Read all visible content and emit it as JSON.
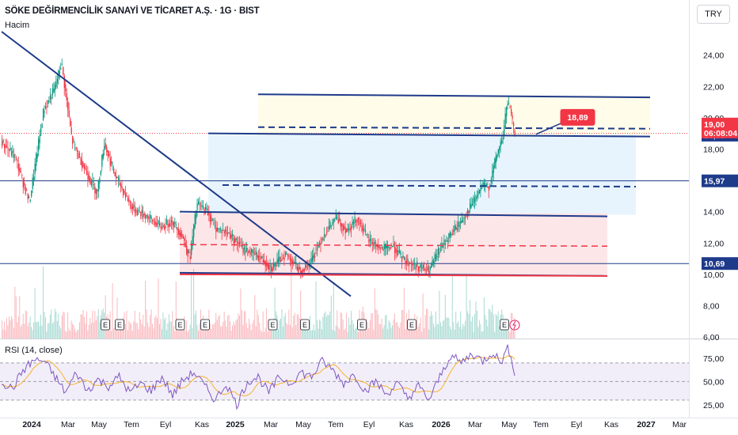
{
  "header": {
    "title": "SÖKE DEĞİRMENCİLİK SANAYİ VE TİCARET A.Ş. · 1G · BIST",
    "volume_label": "Hacim",
    "currency": "TRY",
    "rsi_label": "RSI (14, close)"
  },
  "colors": {
    "blue_line": "#1e3a8a",
    "red_line": "#f23645",
    "candle_up": "#089981",
    "candle_down": "#f23645",
    "rsi_line": "#7e57c2",
    "rsi_ma": "#f7b32b",
    "yellow_zone": "#fffbe6",
    "blue_zone": "#e3f2fd",
    "red_zone": "#fde2e4"
  },
  "chart_data": {
    "type": "candlestick",
    "symbol": "SÖKE DEĞİRMENCİLİK SANAYİ VE TİCARET A.Ş.",
    "interval": "1G",
    "exchange": "BIST",
    "y_axis": {
      "ticks": [
        "24,00",
        "22,00",
        "20,00",
        "18,00",
        "16,00",
        "14,00",
        "12,00",
        "10,00",
        "8,00",
        "6,00"
      ],
      "range": [
        5.8,
        25.5
      ]
    },
    "x_axis": {
      "ticks": [
        {
          "label": "2024",
          "bold": true
        },
        {
          "label": "Mar",
          "bold": false
        },
        {
          "label": "May",
          "bold": false
        },
        {
          "label": "Tem",
          "bold": false
        },
        {
          "label": "Eyl",
          "bold": false
        },
        {
          "label": "Kas",
          "bold": false
        },
        {
          "label": "2025",
          "bold": true
        },
        {
          "label": "Mar",
          "bold": false
        },
        {
          "label": "May",
          "bold": false
        },
        {
          "label": "Tem",
          "bold": false
        },
        {
          "label": "Eyl",
          "bold": false
        },
        {
          "label": "Kas",
          "bold": false
        },
        {
          "label": "2026",
          "bold": true
        },
        {
          "label": "Mar",
          "bold": false
        },
        {
          "label": "May",
          "bold": false
        },
        {
          "label": "Tem",
          "bold": false
        },
        {
          "label": "Eyl",
          "bold": false
        },
        {
          "label": "Kas",
          "bold": false
        },
        {
          "label": "2027",
          "bold": true
        },
        {
          "label": "Mar",
          "bold": false
        }
      ]
    },
    "price_path": [
      [
        0,
        18.5
      ],
      [
        4,
        17.5
      ],
      [
        8,
        14.6
      ],
      [
        12,
        20.5
      ],
      [
        15,
        21.8
      ],
      [
        17,
        23.5
      ],
      [
        20,
        18.5
      ],
      [
        24,
        16.5
      ],
      [
        27,
        15.2
      ],
      [
        29,
        18.4
      ],
      [
        32,
        16.3
      ],
      [
        37,
        14.2
      ],
      [
        41,
        13.7
      ],
      [
        45,
        13.0
      ],
      [
        48,
        13.4
      ],
      [
        51,
        12.4
      ],
      [
        53,
        11.0
      ],
      [
        55,
        14.5
      ],
      [
        58,
        14.0
      ],
      [
        60,
        13.0
      ],
      [
        64,
        12.6
      ],
      [
        68,
        11.6
      ],
      [
        72,
        11.2
      ],
      [
        76,
        10.4
      ],
      [
        80,
        11.3
      ],
      [
        84,
        10.2
      ],
      [
        87,
        10.8
      ],
      [
        90,
        12.3
      ],
      [
        94,
        13.6
      ],
      [
        97,
        12.8
      ],
      [
        100,
        13.6
      ],
      [
        103,
        12.2
      ],
      [
        107,
        11.6
      ],
      [
        110,
        11.8
      ],
      [
        113,
        10.9
      ],
      [
        117,
        10.5
      ],
      [
        120,
        10.2
      ],
      [
        123,
        11.5
      ],
      [
        126,
        12.5
      ],
      [
        129,
        13.3
      ],
      [
        132,
        14.4
      ],
      [
        135,
        15.6
      ],
      [
        137,
        15.6
      ],
      [
        139,
        17.5
      ],
      [
        141,
        18.9
      ],
      [
        142,
        21.0
      ],
      [
        143,
        20.5
      ],
      [
        144,
        19.0
      ]
    ],
    "last_price": "19,00",
    "countdown": "06:08:04",
    "price_labels": [
      "18,89",
      "15,97",
      "10,69"
    ],
    "callout_label": "18,89",
    "earnings_marker": "E",
    "rsi": {
      "ticks": [
        "75,00",
        "50,00",
        "25,00"
      ],
      "overbought": 70,
      "oversold": 30,
      "path": [
        [
          0,
          50
        ],
        [
          3,
          42
        ],
        [
          6,
          62
        ],
        [
          9,
          73
        ],
        [
          12,
          72
        ],
        [
          15,
          55
        ],
        [
          18,
          38
        ],
        [
          21,
          60
        ],
        [
          24,
          40
        ],
        [
          27,
          52
        ],
        [
          30,
          45
        ],
        [
          33,
          55
        ],
        [
          36,
          38
        ],
        [
          39,
          48
        ],
        [
          42,
          40
        ],
        [
          45,
          55
        ],
        [
          48,
          35
        ],
        [
          51,
          52
        ],
        [
          54,
          60
        ],
        [
          57,
          45
        ],
        [
          60,
          30
        ],
        [
          63,
          48
        ],
        [
          66,
          25
        ],
        [
          69,
          50
        ],
        [
          72,
          55
        ],
        [
          75,
          38
        ],
        [
          78,
          55
        ],
        [
          81,
          48
        ],
        [
          84,
          60
        ],
        [
          87,
          55
        ],
        [
          90,
          72
        ],
        [
          93,
          62
        ],
        [
          96,
          48
        ],
        [
          99,
          58
        ],
        [
          102,
          40
        ],
        [
          105,
          50
        ],
        [
          108,
          36
        ],
        [
          111,
          48
        ],
        [
          114,
          32
        ],
        [
          117,
          45
        ],
        [
          120,
          30
        ],
        [
          123,
          55
        ],
        [
          126,
          78
        ],
        [
          129,
          70
        ],
        [
          132,
          80
        ],
        [
          135,
          72
        ],
        [
          138,
          82
        ],
        [
          140,
          70
        ],
        [
          142,
          85
        ],
        [
          143,
          78
        ],
        [
          144,
          60
        ]
      ]
    },
    "trendlines": [
      {
        "label": "descending",
        "from": [
          0,
          25.5
        ],
        "to": [
          98,
          8.6
        ]
      },
      {
        "label": "upper-channel",
        "from": [
          72,
          21.5
        ],
        "to": [
          182,
          21.3
        ]
      },
      {
        "label": "resistance-18.89",
        "from": [
          58,
          19.0
        ],
        "to": [
          182,
          18.8
        ]
      },
      {
        "label": "range-top",
        "from": [
          50,
          14.0
        ],
        "to": [
          170,
          13.7
        ]
      },
      {
        "label": "range-bottom",
        "from": [
          50,
          10.1
        ],
        "to": [
          170,
          9.9
        ]
      }
    ]
  }
}
